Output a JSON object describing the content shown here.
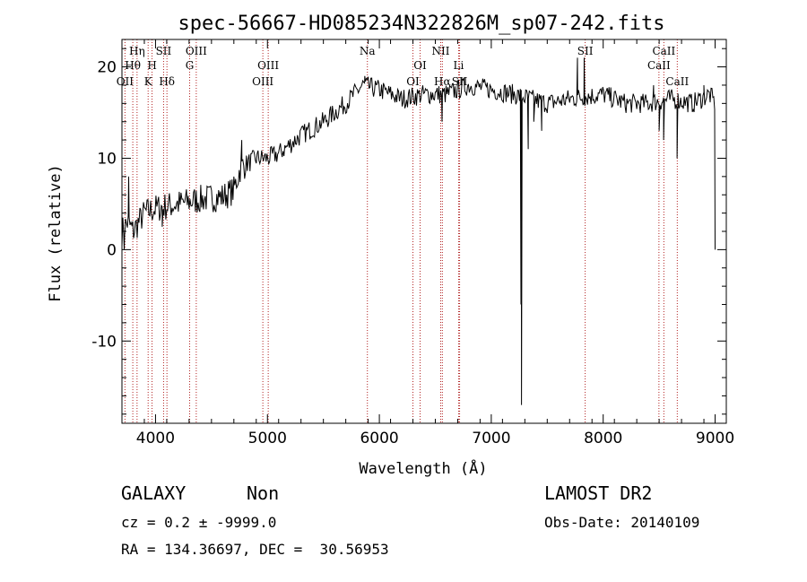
{
  "chart_data": {
    "type": "line",
    "title": "spec-56667-HD085234N322826M_sp07-242.fits",
    "xlabel": "Wavelength (Å)",
    "ylabel": "Flux (relative)",
    "xlim": [
      3700,
      9100
    ],
    "ylim": [
      -19,
      23
    ],
    "xticks": [
      4000,
      5000,
      6000,
      7000,
      8000,
      9000
    ],
    "yticks": [
      -10,
      0,
      10,
      20
    ],
    "grid": false,
    "line_color": "#000000",
    "marker_color": "#b22222",
    "spectral_lines": [
      {
        "label": "OII",
        "wavelength": 3727,
        "row": 3
      },
      {
        "label": "Hθ",
        "wavelength": 3797,
        "row": 2
      },
      {
        "label": "Hη",
        "wavelength": 3835,
        "row": 1
      },
      {
        "label": "K",
        "wavelength": 3934,
        "row": 3
      },
      {
        "label": "H",
        "wavelength": 3969,
        "row": 2
      },
      {
        "label": "SII",
        "wavelength": 4072,
        "row": 1
      },
      {
        "label": "Hδ",
        "wavelength": 4102,
        "row": 3
      },
      {
        "label": "G",
        "wavelength": 4305,
        "row": 2
      },
      {
        "label": "OIII",
        "wavelength": 4364,
        "row": 1
      },
      {
        "label": "OIII",
        "wavelength": 4959,
        "row": 3
      },
      {
        "label": "OIII",
        "wavelength": 5007,
        "row": 2
      },
      {
        "label": "Na",
        "wavelength": 5893,
        "row": 1
      },
      {
        "label": "OI",
        "wavelength": 6300,
        "row": 3
      },
      {
        "label": "OI",
        "wavelength": 6364,
        "row": 2
      },
      {
        "label": "NII",
        "wavelength": 6548,
        "row": 1
      },
      {
        "label": "Hα",
        "wavelength": 6563,
        "row": 3
      },
      {
        "label": "Li",
        "wavelength": 6708,
        "row": 2
      },
      {
        "label": "SII",
        "wavelength": 6717,
        "row": 3
      },
      {
        "label": "SII",
        "wavelength": 7839,
        "row": 1
      },
      {
        "label": "CaII",
        "wavelength": 8498,
        "row": 2
      },
      {
        "label": "CaII",
        "wavelength": 8542,
        "row": 1
      },
      {
        "label": "CaII",
        "wavelength": 8662,
        "row": 3
      }
    ],
    "spectrum_nodes": [
      {
        "x": 3700,
        "y": 2
      },
      {
        "x": 3750,
        "y": 3
      },
      {
        "x": 3800,
        "y": 2
      },
      {
        "x": 3900,
        "y": 4
      },
      {
        "x": 4000,
        "y": 4.5
      },
      {
        "x": 4200,
        "y": 5
      },
      {
        "x": 4400,
        "y": 5.5
      },
      {
        "x": 4600,
        "y": 5.8
      },
      {
        "x": 4700,
        "y": 6.5
      },
      {
        "x": 4760,
        "y": 9
      },
      {
        "x": 4900,
        "y": 10
      },
      {
        "x": 5000,
        "y": 10
      },
      {
        "x": 5100,
        "y": 10.5
      },
      {
        "x": 5300,
        "y": 12.5
      },
      {
        "x": 5500,
        "y": 14
      },
      {
        "x": 5700,
        "y": 16
      },
      {
        "x": 5850,
        "y": 18
      },
      {
        "x": 6000,
        "y": 17.5
      },
      {
        "x": 6200,
        "y": 16.5
      },
      {
        "x": 6400,
        "y": 17
      },
      {
        "x": 6600,
        "y": 17
      },
      {
        "x": 6800,
        "y": 18
      },
      {
        "x": 7000,
        "y": 17.5
      },
      {
        "x": 7200,
        "y": 17
      },
      {
        "x": 7500,
        "y": 16
      },
      {
        "x": 7700,
        "y": 16.5
      },
      {
        "x": 8000,
        "y": 17
      },
      {
        "x": 8200,
        "y": 16
      },
      {
        "x": 8400,
        "y": 16
      },
      {
        "x": 8600,
        "y": 16.5
      },
      {
        "x": 8800,
        "y": 16
      },
      {
        "x": 8950,
        "y": 17
      },
      {
        "x": 9000,
        "y": 16
      }
    ],
    "spectrum_features": [
      {
        "x": 3720,
        "y": 0
      },
      {
        "x": 3760,
        "y": 8
      },
      {
        "x": 4060,
        "y": 2.5
      },
      {
        "x": 4770,
        "y": 12
      },
      {
        "x": 5870,
        "y": 19
      },
      {
        "x": 6560,
        "y": 14
      },
      {
        "x": 7265,
        "y": -6
      },
      {
        "x": 7270,
        "y": -17
      },
      {
        "x": 7330,
        "y": 11
      },
      {
        "x": 7380,
        "y": 14
      },
      {
        "x": 7450,
        "y": 13
      },
      {
        "x": 7770,
        "y": 21
      },
      {
        "x": 7830,
        "y": 21
      },
      {
        "x": 8450,
        "y": 18
      },
      {
        "x": 8500,
        "y": 13
      },
      {
        "x": 8540,
        "y": 12
      },
      {
        "x": 8660,
        "y": 10
      },
      {
        "x": 8900,
        "y": 18
      },
      {
        "x": 9000,
        "y": 0
      }
    ]
  },
  "info": {
    "object_class": "GALAXY",
    "subclass": "Non",
    "survey": "LAMOST DR2",
    "redshift": "cz = 0.2 ± -9999.0",
    "obs_date": "Obs-Date: 20140109",
    "coordinates": "RA = 134.36697, DEC =  30.56953"
  }
}
